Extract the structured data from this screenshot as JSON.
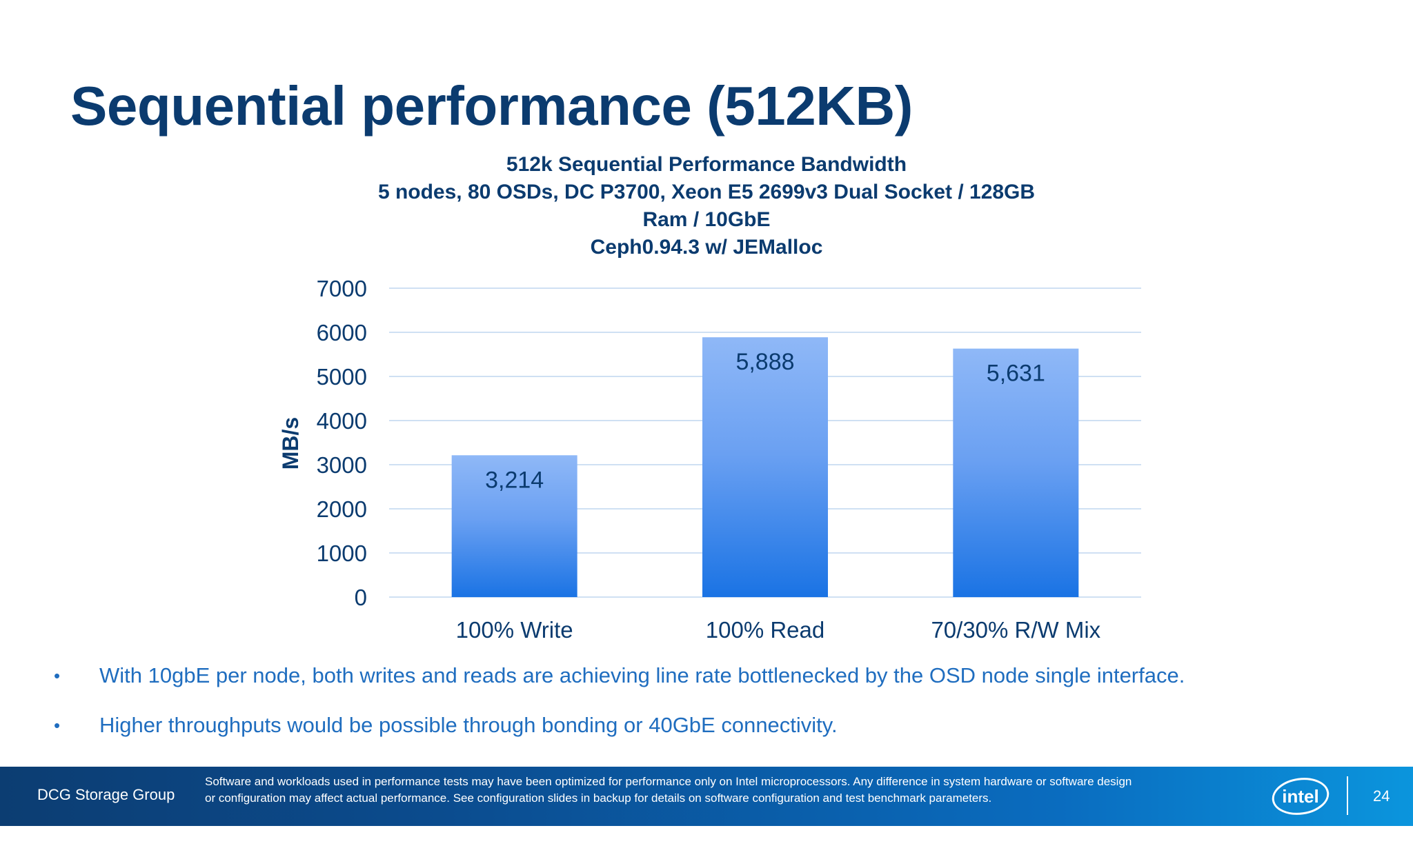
{
  "slide": {
    "title": "Sequential performance (512KB)",
    "bullets": [
      "With 10gbE per node, both writes and reads are achieving line rate bottlenecked by the OSD node single interface.",
      "Higher throughputs would be possible through bonding or 40GbE connectivity."
    ],
    "bullet_marker": "•"
  },
  "footer": {
    "group": "DCG Storage Group",
    "disclaimer": "Software and workloads used in performance tests may have been optimized for performance only on Intel microprocessors. Any difference in system hardware or software design or configuration may affect actual performance.  See configuration slides in backup for details on software configuration and test benchmark parameters.",
    "logo_text": "intel",
    "page_number": "24"
  },
  "chart_data": {
    "type": "bar",
    "title_lines": [
      "512k Sequential Performance Bandwidth",
      "5 nodes, 80 OSDs, DC P3700, Xeon E5 2699v3 Dual Socket / 128GB",
      "Ram / 10GbE",
      "Ceph0.94.3 w/ JEMalloc"
    ],
    "categories": [
      "100% Write",
      "100% Read",
      "70/30% R/W Mix"
    ],
    "values": [
      3214,
      5888,
      5631
    ],
    "data_labels": [
      "3,214",
      "5,888",
      "5,631"
    ],
    "xlabel": "",
    "ylabel": "MB/s",
    "ylim": [
      0,
      7000
    ],
    "yticks": [
      0,
      1000,
      2000,
      3000,
      4000,
      5000,
      6000,
      7000
    ],
    "grid": true,
    "legend": "none",
    "colors": {
      "bar_top": "#8fb8f7",
      "bar_bottom": "#1a73e4",
      "grid": "#cfe0f3",
      "text": "#0b3b6f"
    }
  }
}
